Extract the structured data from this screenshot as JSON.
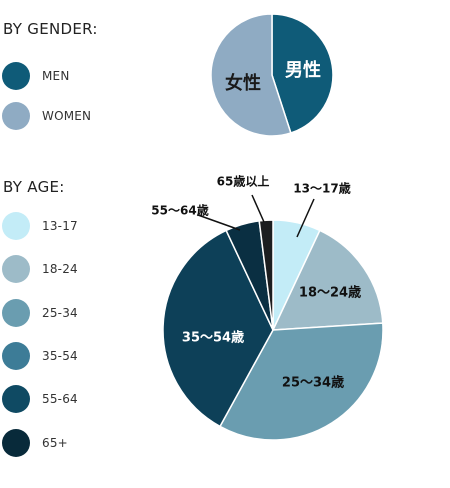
{
  "gender_legend": {
    "title": "BY GENDER:",
    "items": [
      {
        "label": "MEN",
        "color": "#0f5b78"
      },
      {
        "label": "WOMEN",
        "color": "#8fabc3"
      }
    ]
  },
  "age_legend": {
    "title": "BY AGE:",
    "items": [
      {
        "label": "13-17",
        "color": "#c3ecf7"
      },
      {
        "label": "18-24",
        "color": "#9dbbc8"
      },
      {
        "label": "25-34",
        "color": "#6a9db0"
      },
      {
        "label": "35-54",
        "color": "#3d7c97"
      },
      {
        "label": "55-64",
        "color": "#0f4a63"
      },
      {
        "label": "65+",
        "color": "#082a3a"
      }
    ]
  },
  "chart_data": [
    {
      "type": "pie",
      "slices": [
        {
          "label": "男性",
          "value": 45,
          "color": "#0f5b78"
        },
        {
          "label": "女性",
          "value": 55,
          "color": "#8fabc3"
        }
      ]
    },
    {
      "type": "pie",
      "slices": [
        {
          "label": "13～17歳",
          "value": 7,
          "color": "#c3ecf7"
        },
        {
          "label": "18～24歳",
          "value": 17,
          "color": "#9dbbc8"
        },
        {
          "label": "25～34歳",
          "value": 34,
          "color": "#6a9db0"
        },
        {
          "label": "35～54歳",
          "value": 35,
          "color": "#0d4058"
        },
        {
          "label": "55～64歳",
          "value": 5,
          "color": "#0a2f42"
        },
        {
          "label": "65歳以上",
          "value": 2,
          "color": "#1c1e20"
        }
      ]
    }
  ]
}
